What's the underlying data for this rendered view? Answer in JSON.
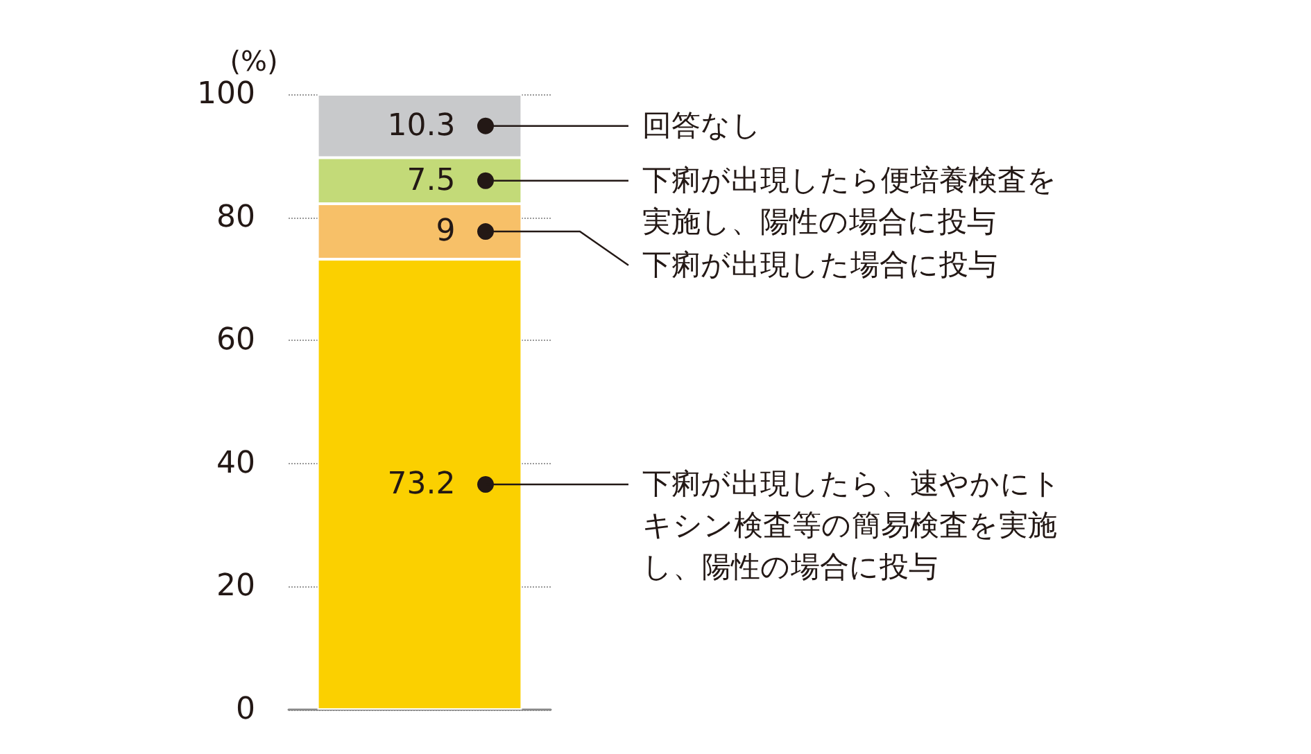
{
  "chart_data": {
    "type": "bar",
    "stacked": true,
    "ylabel": "(%)",
    "categories": [
      null
    ],
    "series": [
      {
        "name": "下痢が出現したら、速やかにトキシン検査等の簡易検査を実施し、陽性の場合に投与",
        "color": "#fbd000",
        "values": [
          73.2
        ]
      },
      {
        "name": "下痢が出現した場合に投与",
        "color": "#f7c068",
        "values": [
          9
        ]
      },
      {
        "name": "下痢が出現したら便培養検査を実施し、陽性の場合に投与",
        "color": "#c3da78",
        "values": [
          7.5
        ]
      },
      {
        "name": "回答なし",
        "color": "#c8c9cb",
        "values": [
          10.3
        ]
      }
    ],
    "ylim": [
      0,
      100
    ],
    "yticks": [
      0,
      20,
      40,
      60,
      80,
      100
    ],
    "grid": "y",
    "legend": false,
    "data_labels": true
  }
}
